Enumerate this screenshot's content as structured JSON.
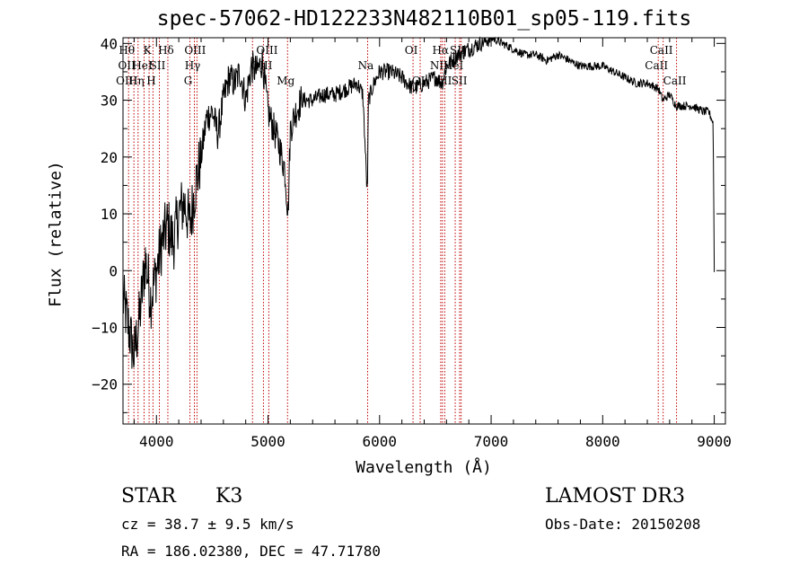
{
  "chart_data": {
    "type": "line",
    "title": "spec-57062-HD122233N482110B01_sp05-119.fits",
    "xlabel": "Wavelength (Å)",
    "ylabel": "Flux (relative)",
    "xlim": [
      3700,
      9100
    ],
    "ylim": [
      -27,
      41
    ],
    "xticks": [
      4000,
      5000,
      6000,
      7000,
      8000,
      9000
    ],
    "yticks": [
      -20,
      -10,
      0,
      10,
      20,
      30,
      40
    ],
    "grid": false,
    "series": [
      {
        "x": [
          3700,
          3750,
          3800,
          3850,
          3900,
          3950,
          4000,
          4050,
          4100,
          4150,
          4200,
          4250,
          4300,
          4350,
          4400,
          4450,
          4500,
          4550,
          4600,
          4650,
          4700,
          4750,
          4800,
          4850,
          4900,
          4950,
          5000,
          5050,
          5100,
          5150,
          5180,
          5200,
          5250,
          5300,
          5400,
          5500,
          5600,
          5700,
          5800,
          5850,
          5890,
          5900,
          5950,
          6000,
          6100,
          6200,
          6300,
          6400,
          6500,
          6560,
          6600,
          6700,
          6800,
          6900,
          7000,
          7100,
          7200,
          7300,
          7400,
          7500,
          7600,
          7700,
          7800,
          7900,
          8000,
          8100,
          8200,
          8300,
          8400,
          8500,
          8540,
          8600,
          8660,
          8700,
          8800,
          8900,
          8950,
          8990,
          9000
        ],
        "y": [
          -5,
          -10,
          -15,
          -8,
          2,
          -5,
          0,
          5,
          8,
          5,
          10,
          12,
          8,
          15,
          20,
          27,
          28,
          24,
          30,
          34,
          33,
          35,
          30,
          36,
          35,
          37,
          28,
          25,
          22,
          18,
          10,
          25,
          28,
          30,
          30,
          31,
          31,
          32,
          33,
          31,
          13,
          30,
          33,
          35,
          35,
          34,
          32,
          33,
          34,
          33,
          36,
          38,
          39,
          40,
          41,
          40,
          39,
          38,
          38,
          37,
          38,
          37,
          36,
          36,
          36,
          35,
          34,
          33,
          33,
          32,
          30,
          31,
          29,
          29,
          29,
          28,
          28,
          26,
          0
        ]
      }
    ],
    "lines": [
      {
        "w": 3750,
        "labels": [
          [
            "Hθ",
            0
          ],
          [
            "OII",
            1
          ],
          [
            "OIII",
            2
          ]
        ]
      },
      {
        "w": 3798,
        "labels": []
      },
      {
        "w": 3835,
        "labels": [
          [
            "Hη",
            2
          ]
        ]
      },
      {
        "w": 3889,
        "labels": [
          [
            "HeI",
            1
          ]
        ]
      },
      {
        "w": 3934,
        "labels": [
          [
            "K",
            0
          ]
        ]
      },
      {
        "w": 3969,
        "labels": [
          [
            "H",
            2
          ]
        ]
      },
      {
        "w": 4026,
        "labels": [
          [
            "SII",
            1
          ]
        ]
      },
      {
        "w": 4102,
        "labels": [
          [
            "Hδ",
            0
          ]
        ]
      },
      {
        "w": 4300,
        "labels": [
          [
            "G",
            2
          ]
        ]
      },
      {
        "w": 4340,
        "labels": [
          [
            "Hγ",
            1
          ]
        ]
      },
      {
        "w": 4363,
        "labels": [
          [
            "OIII",
            0
          ]
        ]
      },
      {
        "w": 4861,
        "labels": []
      },
      {
        "w": 4959,
        "labels": [
          [
            "OIII",
            1
          ]
        ]
      },
      {
        "w": 5007,
        "labels": [
          [
            "OIII",
            0
          ]
        ]
      },
      {
        "w": 5175,
        "labels": [
          [
            "Mg",
            2
          ]
        ]
      },
      {
        "w": 5893,
        "labels": [
          [
            "Na",
            1
          ]
        ]
      },
      {
        "w": 6300,
        "labels": [
          [
            "OI",
            0
          ]
        ]
      },
      {
        "w": 6364,
        "labels": [
          [
            "OI",
            2
          ]
        ]
      },
      {
        "w": 6548,
        "labels": [
          [
            "NII",
            1
          ]
        ]
      },
      {
        "w": 6563,
        "labels": [
          [
            "Hα",
            0
          ]
        ]
      },
      {
        "w": 6584,
        "labels": [
          [
            "NII",
            2
          ]
        ]
      },
      {
        "w": 6678,
        "labels": [
          [
            "HeI",
            1
          ]
        ]
      },
      {
        "w": 6717,
        "labels": [
          [
            "SII",
            0
          ]
        ]
      },
      {
        "w": 6731,
        "labels": [
          [
            "SII",
            2
          ]
        ]
      },
      {
        "w": 8498,
        "labels": [
          [
            "CaII",
            1
          ]
        ]
      },
      {
        "w": 8542,
        "labels": [
          [
            "CaII",
            0
          ]
        ]
      },
      {
        "w": 8662,
        "labels": [
          [
            "CaII",
            2
          ]
        ]
      }
    ]
  },
  "footer": {
    "object_class": "STAR",
    "subclass": "K3",
    "survey": "LAMOST DR3",
    "cz": "cz = 38.7 ± 9.5 km/s",
    "obs_date": "Obs-Date: 20150208",
    "coords": "RA = 186.02380, DEC =  47.71780"
  },
  "colors": {
    "spectrum": "#000000",
    "line_markers": "#c00000",
    "axes": "#000000"
  }
}
